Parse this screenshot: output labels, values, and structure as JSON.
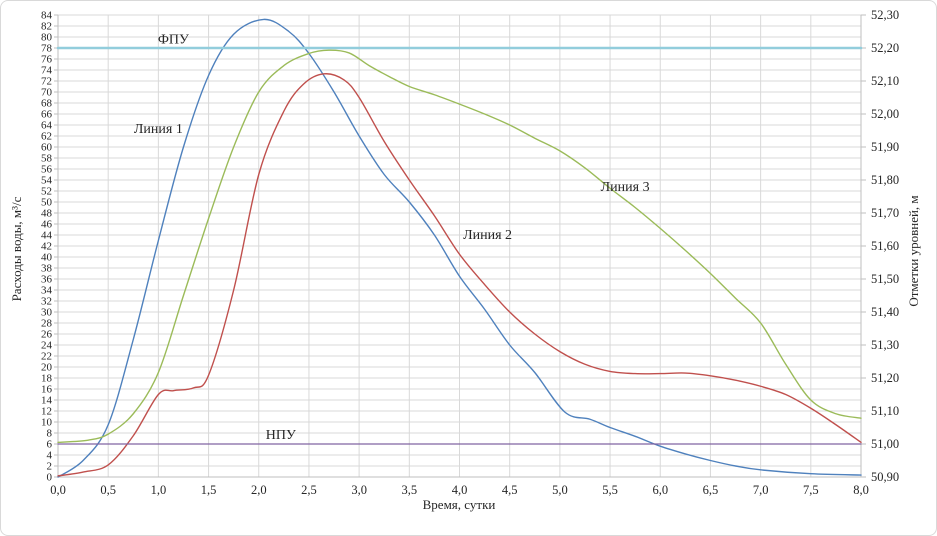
{
  "chart_data": {
    "type": "line",
    "title": "",
    "xlabel": "Время, сутки",
    "ylabel_left": "Расходы воды, м³/с",
    "ylabel_right": "Отметки уровней, м",
    "x_range": [
      0,
      8
    ],
    "x_tick_step": 0.5,
    "x_tick_decimals": 1,
    "y_left_range": [
      0,
      84
    ],
    "y_left_tick_step": 2,
    "y_right_range": [
      50.9,
      52.3
    ],
    "y_right_tick_step": 0.1,
    "y_right_tick_decimals": 2,
    "decimal_separator": ",",
    "grid": true,
    "legend_position": "none",
    "colors": {
      "line1": "#4F81BD",
      "line2": "#C0504D",
      "line3": "#9BBB59",
      "fpu": "#92CDDC",
      "npu": "#8064A2",
      "grid": "#D9D9D9",
      "axis": "#BFBFBF",
      "text": "#262626"
    },
    "series": [
      {
        "name": "Линия 1",
        "color": "#4F81BD",
        "width": 1.4,
        "points": [
          [
            0,
            0
          ],
          [
            0.25,
            3
          ],
          [
            0.5,
            9.5
          ],
          [
            0.75,
            25
          ],
          [
            1,
            43
          ],
          [
            1.25,
            60
          ],
          [
            1.5,
            73
          ],
          [
            1.75,
            80.5
          ],
          [
            2.05,
            83.2
          ],
          [
            2.3,
            81
          ],
          [
            2.5,
            77
          ],
          [
            2.75,
            70
          ],
          [
            3,
            62
          ],
          [
            3.25,
            55
          ],
          [
            3.5,
            50
          ],
          [
            3.75,
            44
          ],
          [
            4,
            36.5
          ],
          [
            4.25,
            30.5
          ],
          [
            4.5,
            24
          ],
          [
            4.75,
            19
          ],
          [
            5.05,
            11.8
          ],
          [
            5.3,
            10.5
          ],
          [
            5.5,
            9
          ],
          [
            5.75,
            7.4
          ],
          [
            6,
            5.6
          ],
          [
            6.25,
            4.2
          ],
          [
            6.5,
            3
          ],
          [
            6.75,
            2
          ],
          [
            7,
            1.3
          ],
          [
            7.5,
            0.6
          ],
          [
            8,
            0.35
          ]
        ]
      },
      {
        "name": "Линия 2",
        "color": "#C0504D",
        "width": 1.4,
        "points": [
          [
            0,
            0.2
          ],
          [
            0.25,
            0.9
          ],
          [
            0.5,
            2.2
          ],
          [
            0.75,
            7.5
          ],
          [
            1,
            15
          ],
          [
            1.15,
            15.7
          ],
          [
            1.35,
            16.2
          ],
          [
            1.5,
            18.5
          ],
          [
            1.75,
            34
          ],
          [
            2,
            55
          ],
          [
            2.25,
            66.5
          ],
          [
            2.45,
            71.5
          ],
          [
            2.65,
            73.3
          ],
          [
            2.85,
            72.2
          ],
          [
            3,
            69
          ],
          [
            3.25,
            61
          ],
          [
            3.5,
            54
          ],
          [
            3.75,
            47.5
          ],
          [
            4,
            40.5
          ],
          [
            4.25,
            35
          ],
          [
            4.5,
            30
          ],
          [
            4.75,
            26
          ],
          [
            5,
            22.8
          ],
          [
            5.25,
            20.5
          ],
          [
            5.5,
            19.2
          ],
          [
            5.75,
            18.8
          ],
          [
            6,
            18.8
          ],
          [
            6.25,
            18.9
          ],
          [
            6.5,
            18.4
          ],
          [
            6.75,
            17.6
          ],
          [
            7,
            16.5
          ],
          [
            7.25,
            15
          ],
          [
            7.5,
            12.5
          ],
          [
            7.75,
            9.5
          ],
          [
            8,
            6.3
          ]
        ]
      },
      {
        "name": "Линия 3",
        "color": "#9BBB59",
        "width": 1.4,
        "points": [
          [
            0,
            6.3
          ],
          [
            0.3,
            6.7
          ],
          [
            0.5,
            7.8
          ],
          [
            0.75,
            11.5
          ],
          [
            1,
            19
          ],
          [
            1.25,
            33
          ],
          [
            1.5,
            47
          ],
          [
            1.75,
            60
          ],
          [
            2,
            70
          ],
          [
            2.25,
            74.8
          ],
          [
            2.5,
            77
          ],
          [
            2.7,
            77.6
          ],
          [
            2.9,
            77.1
          ],
          [
            3.1,
            74.8
          ],
          [
            3.3,
            72.8
          ],
          [
            3.5,
            71
          ],
          [
            3.75,
            69.5
          ],
          [
            4,
            67.8
          ],
          [
            4.25,
            66
          ],
          [
            4.5,
            64
          ],
          [
            4.75,
            61.6
          ],
          [
            5,
            59.3
          ],
          [
            5.25,
            56.2
          ],
          [
            5.5,
            52.5
          ],
          [
            5.75,
            49
          ],
          [
            6,
            45.2
          ],
          [
            6.25,
            41.2
          ],
          [
            6.5,
            37
          ],
          [
            6.75,
            32.5
          ],
          [
            7,
            28
          ],
          [
            7.25,
            20.5
          ],
          [
            7.5,
            14
          ],
          [
            7.75,
            11.5
          ],
          [
            8,
            10.7
          ]
        ]
      },
      {
        "name": "ФПУ",
        "color": "#92CDDC",
        "width": 2.6,
        "points": [
          [
            0,
            78
          ],
          [
            8,
            78
          ]
        ]
      },
      {
        "name": "НПУ",
        "color": "#8064A2",
        "width": 1.3,
        "points": [
          [
            0,
            6
          ],
          [
            8,
            6
          ]
        ]
      }
    ],
    "annotations": [
      {
        "text": "ФПУ",
        "t": 1.15,
        "v": 79.6
      },
      {
        "text": "Линия 1",
        "t": 1.0,
        "v": 63.4
      },
      {
        "text": "Линия 2",
        "t": 4.28,
        "v": 44.1
      },
      {
        "text": "Линия 3",
        "t": 5.65,
        "v": 52.8
      },
      {
        "text": "НПУ",
        "t": 2.22,
        "v": 7.7
      }
    ]
  }
}
